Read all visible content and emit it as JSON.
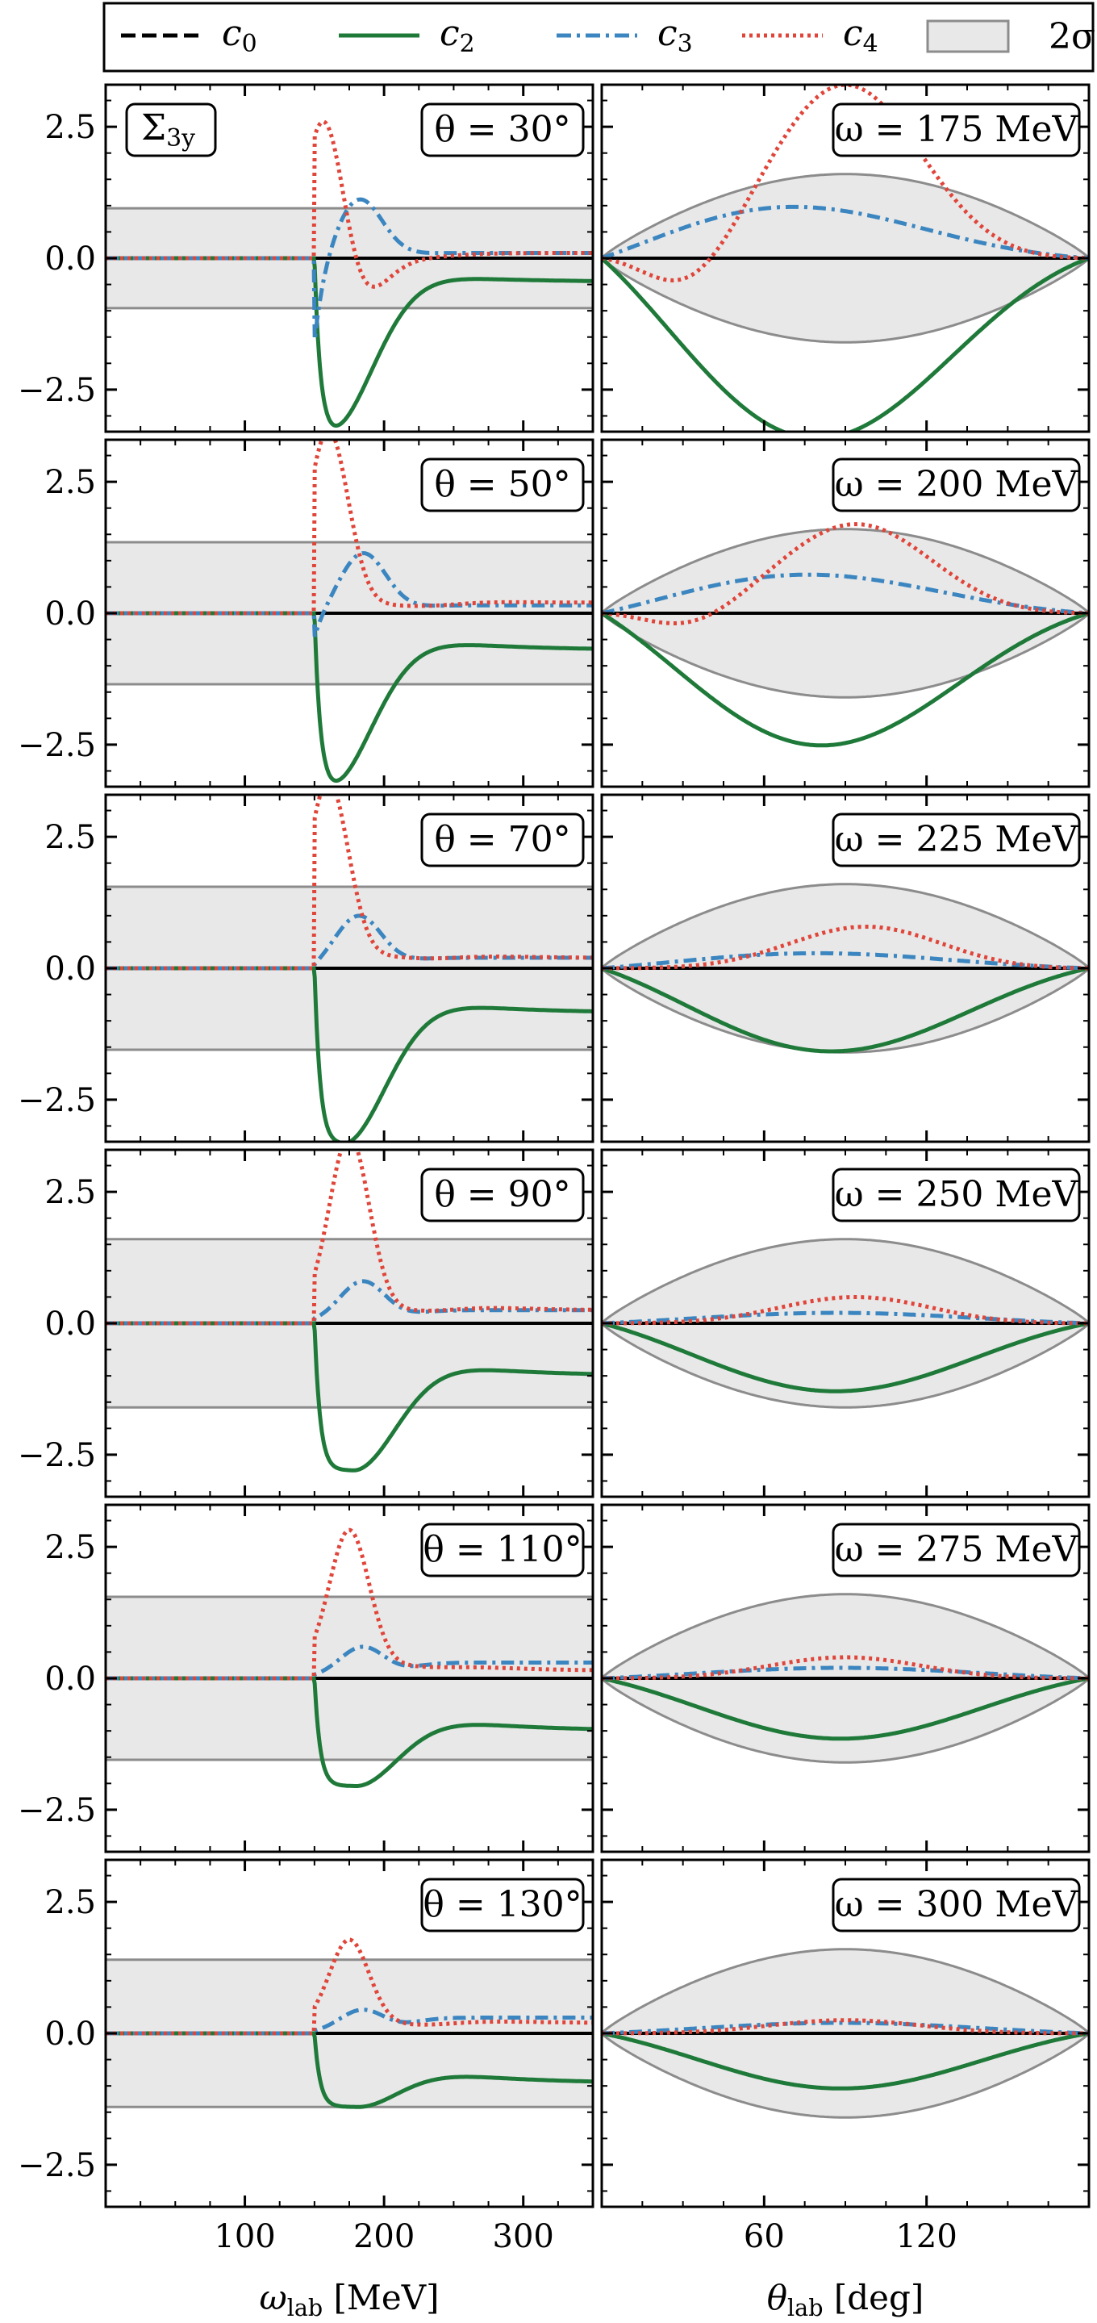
{
  "legend": {
    "items": [
      {
        "key": "c0",
        "label": "c",
        "sub": "0",
        "color": "#000000",
        "style": "dashed"
      },
      {
        "key": "c2",
        "label": "c",
        "sub": "2",
        "color": "#1f7a3a",
        "style": "solid"
      },
      {
        "key": "c3",
        "label": "c",
        "sub": "3",
        "color": "#3b86c0",
        "style": "dashdot"
      },
      {
        "key": "c4",
        "label": "c",
        "sub": "4",
        "color": "#e0453a",
        "style": "dotted"
      },
      {
        "key": "band",
        "label": "2σ",
        "sub": "",
        "color": "#e6e6e6",
        "style": "band"
      }
    ]
  },
  "observable": {
    "main": "Σ",
    "sub": "3y"
  },
  "colors": {
    "c0": "#000000",
    "c2": "#1f7a3a",
    "c3": "#3b86c0",
    "c4": "#e0453a",
    "band_fill": "#e8e8e8",
    "band_edge": "#8c8c8c"
  },
  "chart_data": [
    {
      "panel": "left-column",
      "type": "line",
      "x_label_main": "ω",
      "x_label_sub": "lab",
      "x_label_unit": "[MeV]",
      "xlim": [
        0,
        350
      ],
      "ylim": [
        -3.3,
        3.3
      ],
      "x_ticks": [
        100,
        200,
        300
      ],
      "y_ticks": [
        2.5,
        0.0,
        -2.5
      ],
      "y_tick_labels": [
        "2.5",
        "0.0",
        "−2.5"
      ],
      "threshold_x": 150,
      "rows": [
        {
          "label": "θ = 30°",
          "band": 0.95,
          "c3": {
            "amp": 1.15,
            "xp": 182,
            "min": -1.8,
            "tail": 0.1
          },
          "c4": {
            "amp": 3.3,
            "xp": 158,
            "trough": -1.0,
            "xt": 175,
            "tail": 0.1
          },
          "c2": {
            "min": -3.3,
            "xm": 160,
            "tail": -0.45
          }
        },
        {
          "label": "θ = 50°",
          "band": 1.35,
          "c3": {
            "amp": 1.15,
            "xp": 185,
            "min": -0.6,
            "tail": 0.15
          },
          "c4": {
            "amp": 3.3,
            "xp": 160,
            "trough": 0.2,
            "xt": 210,
            "tail": 0.2
          },
          "c2": {
            "min": -3.3,
            "xm": 160,
            "tail": -0.7
          }
        },
        {
          "label": "θ = 70°",
          "band": 1.55,
          "c3": {
            "amp": 1.0,
            "xp": 182,
            "min": -0.1,
            "tail": 0.2
          },
          "c4": {
            "amp": 3.3,
            "xp": 160,
            "trough": 0.3,
            "xt": 260,
            "tail": 0.2
          },
          "c2": {
            "min": -3.35,
            "xm": 170,
            "tail": -0.85
          }
        },
        {
          "label": "θ = 90°",
          "band": 1.6,
          "c3": {
            "amp": 0.8,
            "xp": 185,
            "min": 0.0,
            "tail": 0.25
          },
          "c4": {
            "amp": 3.3,
            "xp": 175,
            "trough": 0.3,
            "xt": 280,
            "tail": 0.25
          },
          "c2": {
            "min": -2.8,
            "xm": 178,
            "tail": -1.0
          }
        },
        {
          "label": "θ = 110°",
          "band": 1.55,
          "c3": {
            "amp": 0.6,
            "xp": 185,
            "min": 0.0,
            "tail": 0.3
          },
          "c4": {
            "amp": 2.55,
            "xp": 175,
            "trough": 0.3,
            "xt": 300,
            "tail": 0.15
          },
          "c2": {
            "min": -2.05,
            "xm": 180,
            "tail": -1.0
          }
        },
        {
          "label": "θ = 130°",
          "band": 1.4,
          "c3": {
            "amp": 0.45,
            "xp": 185,
            "min": 0.0,
            "tail": 0.3
          },
          "c4": {
            "amp": 1.6,
            "xp": 175,
            "trough": 0.2,
            "xt": 300,
            "tail": 0.2
          },
          "c2": {
            "min": -1.4,
            "xm": 182,
            "tail": -0.95
          }
        }
      ]
    },
    {
      "panel": "right-column",
      "type": "line",
      "x_label_main": "θ",
      "x_label_sub": "lab",
      "x_label_unit": "[deg]",
      "xlim": [
        0,
        180
      ],
      "ylim": [
        -3.3,
        3.3
      ],
      "x_ticks": [
        60,
        120
      ],
      "rows": [
        {
          "label": "ω = 175 MeV",
          "band": 1.6,
          "c2": {
            "peak": -3.6,
            "xp": 60
          },
          "c3": {
            "peak": 1.15,
            "xp": 35
          },
          "c4": {
            "a": -1.4,
            "xa": 25,
            "b": 3.3,
            "xb": 90
          }
        },
        {
          "label": "ω = 200 MeV",
          "band": 1.6,
          "c2": {
            "peak": -2.6,
            "xp": 65
          },
          "c3": {
            "peak": 0.8,
            "xp": 50
          },
          "c4": {
            "a": -0.6,
            "xa": 25,
            "b": 1.7,
            "xb": 95
          }
        },
        {
          "label": "ω = 225 MeV",
          "band": 1.6,
          "c2": {
            "peak": -1.6,
            "xp": 75
          },
          "c3": {
            "peak": 0.3,
            "xp": 60
          },
          "c4": {
            "a": 0.0,
            "xa": 20,
            "b": 0.8,
            "xb": 100
          }
        },
        {
          "label": "ω = 250 MeV",
          "band": 1.6,
          "c2": {
            "peak": -1.3,
            "xp": 80
          },
          "c3": {
            "peak": 0.2,
            "xp": 80
          },
          "c4": {
            "a": 0.0,
            "xa": 20,
            "b": 0.5,
            "xb": 95
          }
        },
        {
          "label": "ω = 275 MeV",
          "band": 1.6,
          "c2": {
            "peak": -1.15,
            "xp": 85
          },
          "c3": {
            "peak": 0.2,
            "xp": 85
          },
          "c4": {
            "a": 0.0,
            "xa": 20,
            "b": 0.4,
            "xb": 90
          }
        },
        {
          "label": "ω = 300 MeV",
          "band": 1.6,
          "c2": {
            "peak": -1.05,
            "xp": 85
          },
          "c3": {
            "peak": 0.2,
            "xp": 85
          },
          "c4": {
            "a": 0.0,
            "xa": 20,
            "b": 0.25,
            "xb": 90
          }
        }
      ]
    }
  ]
}
